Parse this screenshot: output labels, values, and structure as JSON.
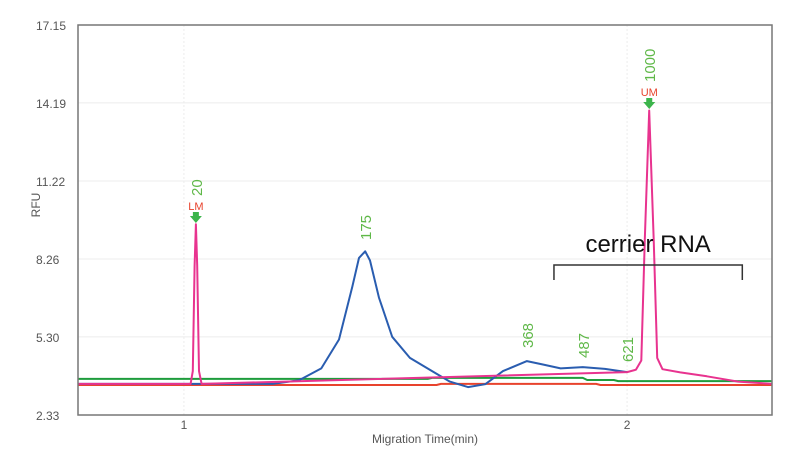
{
  "chart_data": {
    "type": "line",
    "title": "",
    "xlabel": "Migration Time(min)",
    "ylabel": "RFU",
    "xlim": [
      0.761,
      2.327
    ],
    "ylim": [
      2.33,
      17.15
    ],
    "xticks": [
      "1",
      "2"
    ],
    "xtick_values": [
      1,
      2
    ],
    "yticks": [
      "2.33",
      "5.30",
      "8.26",
      "11.22",
      "14.19",
      "17.15"
    ],
    "ytick_values": [
      2.33,
      5.3,
      8.26,
      11.22,
      14.19,
      17.15
    ],
    "grid": true,
    "series": [
      {
        "color": "#e8338f",
        "points": [
          [
            0.761,
            3.51
          ],
          [
            1.015,
            3.51
          ],
          [
            1.02,
            4.0
          ],
          [
            1.024,
            8.0
          ],
          [
            1.027,
            9.58
          ],
          [
            1.03,
            8.0
          ],
          [
            1.034,
            4.0
          ],
          [
            1.04,
            3.51
          ],
          [
            2.0,
            3.96
          ],
          [
            2.02,
            4.05
          ],
          [
            2.032,
            4.4
          ],
          [
            2.04,
            9.0
          ],
          [
            2.05,
            13.9
          ],
          [
            2.06,
            9.0
          ],
          [
            2.068,
            4.5
          ],
          [
            2.08,
            4.07
          ],
          [
            2.12,
            3.95
          ],
          [
            2.18,
            3.8
          ],
          [
            2.25,
            3.6
          ],
          [
            2.327,
            3.51
          ]
        ]
      },
      {
        "color": "#2a5db0",
        "points": [
          [
            0.761,
            3.51
          ],
          [
            1.2,
            3.51
          ],
          [
            1.26,
            3.65
          ],
          [
            1.31,
            4.1
          ],
          [
            1.35,
            5.2
          ],
          [
            1.38,
            7.2
          ],
          [
            1.395,
            8.3
          ],
          [
            1.409,
            8.55
          ],
          [
            1.42,
            8.2
          ],
          [
            1.44,
            6.8
          ],
          [
            1.47,
            5.3
          ],
          [
            1.51,
            4.5
          ],
          [
            1.56,
            4.0
          ],
          [
            1.6,
            3.6
          ],
          [
            1.641,
            3.39
          ],
          [
            1.68,
            3.5
          ],
          [
            1.72,
            4.0
          ],
          [
            1.774,
            4.38
          ],
          [
            1.81,
            4.25
          ],
          [
            1.85,
            4.1
          ],
          [
            1.9,
            4.15
          ],
          [
            1.95,
            4.08
          ],
          [
            2.0,
            3.96
          ]
        ]
      },
      {
        "color": "#1e9c3c",
        "points": [
          [
            0.761,
            3.7
          ],
          [
            1.55,
            3.7
          ],
          [
            1.56,
            3.74
          ],
          [
            1.9,
            3.74
          ],
          [
            1.91,
            3.66
          ],
          [
            1.97,
            3.66
          ],
          [
            1.98,
            3.62
          ],
          [
            2.327,
            3.62
          ]
        ]
      },
      {
        "color": "#e8432d",
        "points": [
          [
            0.761,
            3.47
          ],
          [
            1.57,
            3.47
          ],
          [
            1.58,
            3.51
          ],
          [
            1.93,
            3.51
          ],
          [
            1.94,
            3.47
          ],
          [
            2.327,
            3.47
          ]
        ]
      }
    ],
    "peak_labels": [
      {
        "x": 1.027,
        "label": "20",
        "marker": "LM"
      },
      {
        "x": 1.409,
        "label": "175"
      },
      {
        "x": 1.774,
        "label": "368"
      },
      {
        "x": 1.9,
        "label": "487"
      },
      {
        "x": 2.0,
        "label": "621"
      },
      {
        "x": 2.05,
        "label": "1000",
        "marker": "UM"
      }
    ],
    "annotation": {
      "text": "cerrier RNA",
      "x_start": 1.835,
      "x_end": 2.26
    }
  }
}
